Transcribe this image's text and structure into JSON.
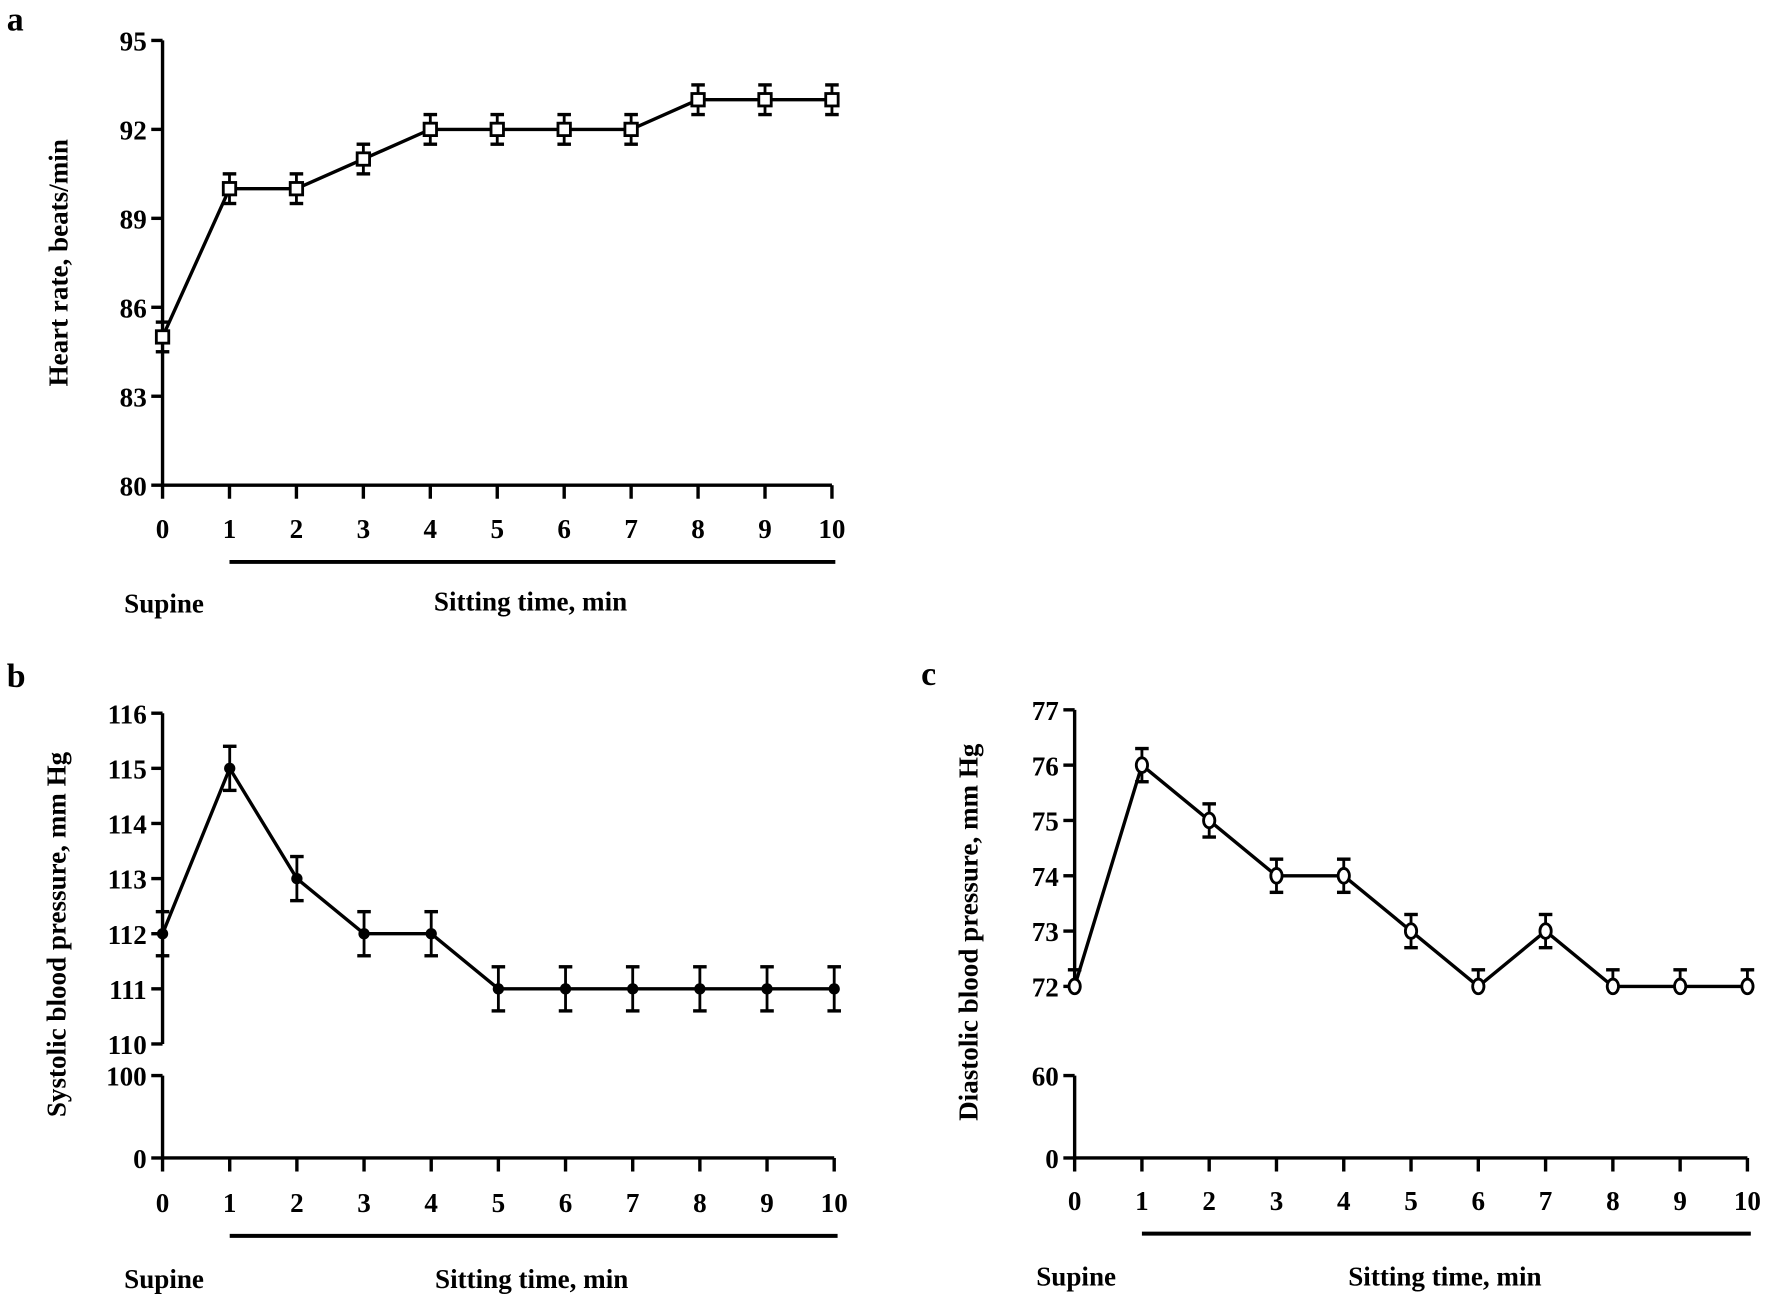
{
  "chart_data": [
    {
      "panel": "a",
      "type": "line",
      "ylabel": "Heart rate, beats/min",
      "xlabel": "Sitting time, min",
      "baseline_label": "Supine",
      "x": [
        0,
        1,
        2,
        3,
        4,
        5,
        6,
        7,
        8,
        9,
        10
      ],
      "xticks": [
        "0",
        "1",
        "2",
        "3",
        "4",
        "5",
        "6",
        "7",
        "8",
        "9",
        "10"
      ],
      "values": [
        85,
        90,
        90,
        91,
        92,
        92,
        92,
        92,
        93,
        93,
        93
      ],
      "yerr": [
        0.5,
        0.5,
        0.5,
        0.5,
        0.5,
        0.5,
        0.5,
        0.5,
        0.5,
        0.5,
        0.5
      ],
      "ylim": [
        80,
        95
      ],
      "yticks": [
        80,
        83,
        86,
        89,
        92,
        95
      ],
      "marker": "open-square",
      "grid": false
    },
    {
      "panel": "b",
      "type": "line",
      "ylabel": "Systolic blood pressure, mm Hg",
      "xlabel": "Sitting time, min",
      "baseline_label": "Supine",
      "x": [
        0,
        1,
        2,
        3,
        4,
        5,
        6,
        7,
        8,
        9,
        10
      ],
      "xticks": [
        "0",
        "1",
        "2",
        "3",
        "4",
        "5",
        "6",
        "7",
        "8",
        "9",
        "10"
      ],
      "values": [
        112,
        115,
        113,
        112,
        112,
        111,
        111,
        111,
        111,
        111,
        111
      ],
      "yerr": [
        0.4,
        0.4,
        0.4,
        0.4,
        0.4,
        0.4,
        0.4,
        0.4,
        0.4,
        0.4,
        0.4
      ],
      "ylim_upper": [
        110,
        116
      ],
      "yticks_upper": [
        110,
        111,
        112,
        113,
        114,
        115,
        116
      ],
      "ylim_lower": [
        0,
        100
      ],
      "yticks_lower": [
        0,
        100
      ],
      "marker": "filled-circle",
      "grid": false
    },
    {
      "panel": "c",
      "type": "line",
      "ylabel": "Diastolic blood pressure, mm Hg",
      "xlabel": "Sitting time, min",
      "baseline_label": "Supine",
      "x": [
        0,
        1,
        2,
        3,
        4,
        5,
        6,
        7,
        8,
        9,
        10
      ],
      "xticks": [
        "0",
        "1",
        "2",
        "3",
        "4",
        "5",
        "6",
        "7",
        "8",
        "9",
        "10"
      ],
      "values": [
        72,
        76,
        75,
        74,
        74,
        73,
        72,
        73,
        72,
        72,
        72
      ],
      "yerr": [
        0.3,
        0.3,
        0.3,
        0.3,
        0.3,
        0.3,
        0.3,
        0.3,
        0.3,
        0.3,
        0.3
      ],
      "ylim_upper": [
        72,
        77
      ],
      "yticks_upper": [
        72,
        73,
        74,
        75,
        76,
        77
      ],
      "ylim_lower": [
        0,
        60
      ],
      "yticks_lower": [
        0,
        60
      ],
      "marker": "open-circle",
      "grid": false
    }
  ]
}
